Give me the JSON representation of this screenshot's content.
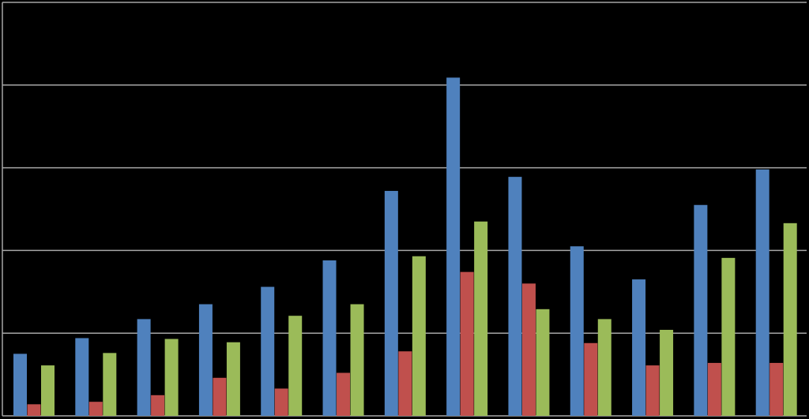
{
  "chart_data": {
    "type": "bar",
    "categories": [
      null,
      null,
      null,
      null,
      null,
      null,
      null,
      null,
      null,
      null,
      null,
      null,
      null
    ],
    "series": [
      {
        "color": "#4f81bd",
        "values": [
          0.75,
          0.94,
          1.17,
          1.35,
          1.56,
          1.88,
          2.72,
          4.09,
          2.89,
          2.05,
          1.65,
          2.55,
          2.98
        ]
      },
      {
        "color": "#c0504d",
        "values": [
          0.14,
          0.17,
          0.25,
          0.46,
          0.33,
          0.52,
          0.78,
          1.74,
          1.6,
          0.88,
          0.61,
          0.64,
          0.64
        ]
      },
      {
        "color": "#9bbb59",
        "values": [
          0.61,
          0.76,
          0.93,
          0.89,
          1.21,
          1.35,
          1.93,
          2.35,
          1.29,
          1.17,
          1.04,
          1.91,
          2.33
        ]
      }
    ],
    "ylim": [
      0,
      5
    ],
    "yticks": [
      0,
      1,
      2,
      3,
      4,
      5
    ],
    "grid": true
  }
}
